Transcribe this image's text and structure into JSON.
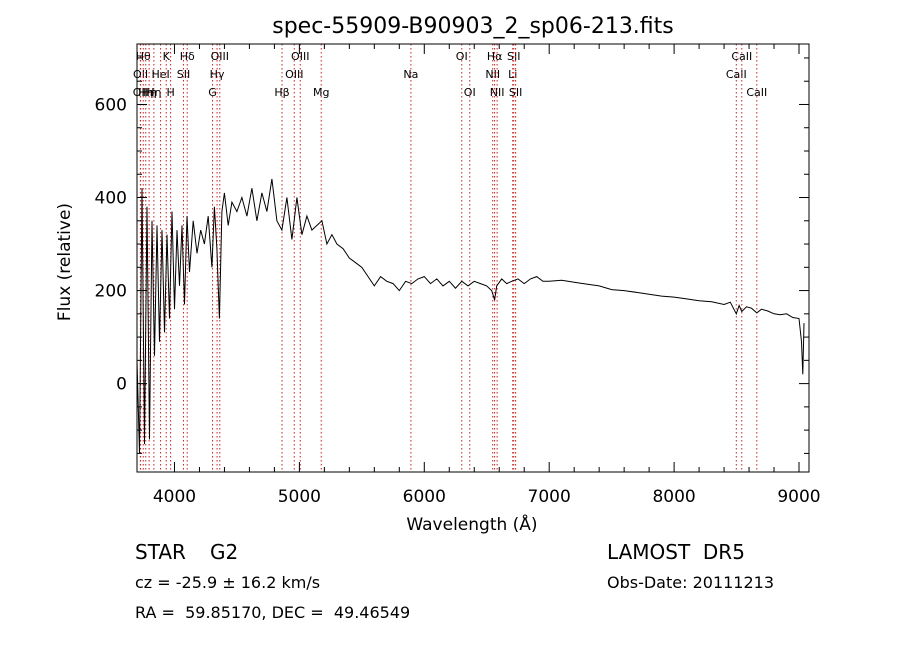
{
  "chart_data": {
    "type": "line",
    "title": "spec-55909-B90903_2_sp06-213.fits",
    "xlabel": "Wavelength (Å)",
    "ylabel": "Flux (relative)",
    "xlim": [
      3700,
      9080
    ],
    "ylim": [
      -190,
      730
    ],
    "xticks": [
      4000,
      5000,
      6000,
      7000,
      8000,
      9000
    ],
    "yticks": [
      0,
      200,
      400,
      600
    ],
    "series": [
      {
        "color": "#000000",
        "x": [
          3700,
          3720,
          3740,
          3760,
          3780,
          3800,
          3820,
          3840,
          3860,
          3880,
          3900,
          3920,
          3940,
          3960,
          3980,
          4000,
          4020,
          4040,
          4060,
          4080,
          4100,
          4120,
          4150,
          4180,
          4210,
          4240,
          4270,
          4300,
          4320,
          4340,
          4360,
          4380,
          4400,
          4430,
          4460,
          4500,
          4540,
          4580,
          4620,
          4660,
          4700,
          4740,
          4780,
          4820,
          4860,
          4900,
          4940,
          4980,
          5020,
          5060,
          5100,
          5140,
          5180,
          5220,
          5260,
          5300,
          5350,
          5400,
          5450,
          5500,
          5550,
          5600,
          5650,
          5700,
          5750,
          5800,
          5850,
          5900,
          5950,
          6000,
          6050,
          6100,
          6150,
          6200,
          6250,
          6300,
          6350,
          6400,
          6450,
          6500,
          6540,
          6563,
          6580,
          6620,
          6660,
          6700,
          6750,
          6800,
          6850,
          6900,
          6950,
          7000,
          7100,
          7200,
          7300,
          7400,
          7500,
          7600,
          7700,
          7800,
          7900,
          8000,
          8100,
          8200,
          8300,
          8400,
          8450,
          8498,
          8520,
          8542,
          8580,
          8620,
          8662,
          8700,
          8750,
          8800,
          8850,
          8900,
          8950,
          9000,
          9020,
          9030,
          9040
        ],
        "values": [
          50,
          -150,
          420,
          -130,
          380,
          -120,
          350,
          60,
          340,
          90,
          330,
          110,
          320,
          140,
          370,
          160,
          330,
          210,
          340,
          170,
          360,
          240,
          350,
          280,
          330,
          300,
          360,
          250,
          380,
          290,
          140,
          370,
          410,
          340,
          390,
          370,
          400,
          360,
          420,
          350,
          410,
          370,
          440,
          350,
          330,
          400,
          310,
          400,
          320,
          360,
          330,
          340,
          350,
          300,
          320,
          300,
          290,
          270,
          260,
          250,
          230,
          210,
          230,
          220,
          215,
          200,
          220,
          215,
          225,
          230,
          215,
          225,
          210,
          220,
          205,
          220,
          210,
          220,
          215,
          210,
          200,
          180,
          210,
          225,
          215,
          220,
          225,
          215,
          225,
          230,
          220,
          220,
          222,
          218,
          214,
          210,
          202,
          200,
          196,
          192,
          188,
          186,
          182,
          178,
          176,
          170,
          175,
          150,
          168,
          155,
          165,
          162,
          152,
          160,
          156,
          150,
          148,
          150,
          142,
          140,
          90,
          20,
          130
        ]
      }
    ],
    "line_labels": [
      {
        "x": 3727,
        "label": "OII",
        "row": 2
      },
      {
        "x": 3729,
        "label": "OII",
        "row": 1
      },
      {
        "x": 3750,
        "label": "Hθ",
        "row": 0
      },
      {
        "x": 3770,
        "label": "Hη",
        "row": 2
      },
      {
        "x": 3797,
        "label": "Hη",
        "row": 2
      },
      {
        "x": 3835,
        "label": "Hη",
        "row": 2
      },
      {
        "x": 3889,
        "label": "HeI",
        "row": 1
      },
      {
        "x": 3934,
        "label": "K",
        "row": 0
      },
      {
        "x": 3969,
        "label": "H",
        "row": 2
      },
      {
        "x": 4072,
        "label": "SII",
        "row": 1
      },
      {
        "x": 4102,
        "label": "Hδ",
        "row": 0
      },
      {
        "x": 4305,
        "label": "G",
        "row": 2
      },
      {
        "x": 4341,
        "label": "Hγ",
        "row": 1
      },
      {
        "x": 4363,
        "label": "OIII",
        "row": 0
      },
      {
        "x": 4861,
        "label": "Hβ",
        "row": 2
      },
      {
        "x": 4959,
        "label": "OIII",
        "row": 1
      },
      {
        "x": 5007,
        "label": "OIII",
        "row": 0
      },
      {
        "x": 5175,
        "label": "Mg",
        "row": 2
      },
      {
        "x": 5893,
        "label": "Na",
        "row": 1
      },
      {
        "x": 6300,
        "label": "OI",
        "row": 0
      },
      {
        "x": 6364,
        "label": "OI",
        "row": 2
      },
      {
        "x": 6548,
        "label": "NII",
        "row": 1
      },
      {
        "x": 6563,
        "label": "Hα",
        "row": 0
      },
      {
        "x": 6583,
        "label": "NII",
        "row": 2
      },
      {
        "x": 6708,
        "label": "Li",
        "row": 1
      },
      {
        "x": 6716,
        "label": "SII",
        "row": 0
      },
      {
        "x": 6731,
        "label": "SII",
        "row": 2
      },
      {
        "x": 8498,
        "label": "CaII",
        "row": 1
      },
      {
        "x": 8542,
        "label": "CaII",
        "row": 0
      },
      {
        "x": 8662,
        "label": "CaII",
        "row": 2
      }
    ]
  },
  "info": {
    "class": "STAR",
    "subclass": "G2",
    "survey": "LAMOST  DR5",
    "cz": "cz = -25.9 ± 16.2 km/s",
    "obs_date": "Obs-Date: 20111213",
    "coords": "RA =  59.85170, DEC =  49.46549"
  }
}
